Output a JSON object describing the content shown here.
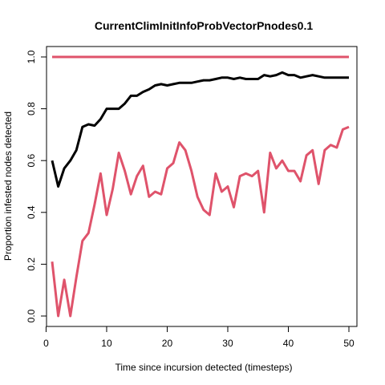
{
  "chart_data": {
    "type": "line",
    "title": "CurrentClimInitInfoProbVectorPnodes0.1",
    "xlabel": "Time since incursion detected (timesteps)",
    "ylabel": "Proportion infested nodes detected",
    "xlim": [
      1,
      50
    ],
    "ylim": [
      0,
      1
    ],
    "x_ticks": [
      0,
      10,
      20,
      30,
      40,
      50
    ],
    "y_ticks": [
      0.0,
      0.2,
      0.4,
      0.6,
      0.8,
      1.0
    ],
    "y_tick_labels": [
      "0.0",
      "0.2",
      "0.4",
      "0.6",
      "0.8",
      "1.0"
    ],
    "grid": false,
    "legend": "none",
    "series": [
      {
        "color": "#DF536B",
        "x": [
          1,
          2,
          3,
          4,
          5,
          6,
          7,
          8,
          9,
          10,
          11,
          12,
          13,
          14,
          15,
          16,
          17,
          18,
          19,
          20,
          21,
          22,
          23,
          24,
          25,
          26,
          27,
          28,
          29,
          30,
          31,
          32,
          33,
          34,
          35,
          36,
          37,
          38,
          39,
          40,
          41,
          42,
          43,
          44,
          45,
          46,
          47,
          48,
          49,
          50
        ],
        "values": [
          1,
          1,
          1,
          1,
          1,
          1,
          1,
          1,
          1,
          1,
          1,
          1,
          1,
          1,
          1,
          1,
          1,
          1,
          1,
          1,
          1,
          1,
          1,
          1,
          1,
          1,
          1,
          1,
          1,
          1,
          1,
          1,
          1,
          1,
          1,
          1,
          1,
          1,
          1,
          1,
          1,
          1,
          1,
          1,
          1,
          1,
          1,
          1,
          1,
          1
        ]
      },
      {
        "color": "#000000",
        "x": [
          1,
          2,
          3,
          4,
          5,
          6,
          7,
          8,
          9,
          10,
          11,
          12,
          13,
          14,
          15,
          16,
          17,
          18,
          19,
          20,
          21,
          22,
          23,
          24,
          25,
          26,
          27,
          28,
          29,
          30,
          31,
          32,
          33,
          34,
          35,
          36,
          37,
          38,
          39,
          40,
          41,
          42,
          43,
          44,
          45,
          46,
          47,
          48,
          49,
          50
        ],
        "values": [
          0.6,
          0.5,
          0.57,
          0.6,
          0.64,
          0.73,
          0.74,
          0.735,
          0.76,
          0.8,
          0.8,
          0.8,
          0.82,
          0.85,
          0.85,
          0.865,
          0.875,
          0.89,
          0.895,
          0.89,
          0.895,
          0.9,
          0.9,
          0.9,
          0.905,
          0.91,
          0.91,
          0.915,
          0.92,
          0.92,
          0.915,
          0.92,
          0.915,
          0.915,
          0.915,
          0.93,
          0.925,
          0.93,
          0.94,
          0.93,
          0.93,
          0.92,
          0.925,
          0.93,
          0.925,
          0.92,
          0.92,
          0.92,
          0.92,
          0.92
        ]
      },
      {
        "color": "#DF536B",
        "x": [
          1,
          2,
          3,
          4,
          5,
          6,
          7,
          8,
          9,
          10,
          11,
          12,
          13,
          14,
          15,
          16,
          17,
          18,
          19,
          20,
          21,
          22,
          23,
          24,
          25,
          26,
          27,
          28,
          29,
          30,
          31,
          32,
          33,
          34,
          35,
          36,
          37,
          38,
          39,
          40,
          41,
          42,
          43,
          44,
          45,
          46,
          47,
          48,
          49,
          50
        ],
        "values": [
          0.21,
          0.0,
          0.14,
          0.0,
          0.15,
          0.29,
          0.32,
          0.43,
          0.55,
          0.39,
          0.49,
          0.63,
          0.56,
          0.47,
          0.54,
          0.58,
          0.46,
          0.48,
          0.47,
          0.57,
          0.59,
          0.67,
          0.64,
          0.56,
          0.46,
          0.41,
          0.39,
          0.55,
          0.48,
          0.5,
          0.42,
          0.54,
          0.55,
          0.54,
          0.56,
          0.4,
          0.63,
          0.57,
          0.6,
          0.56,
          0.56,
          0.52,
          0.62,
          0.64,
          0.51,
          0.64,
          0.66,
          0.65,
          0.72,
          0.73
        ]
      }
    ]
  }
}
